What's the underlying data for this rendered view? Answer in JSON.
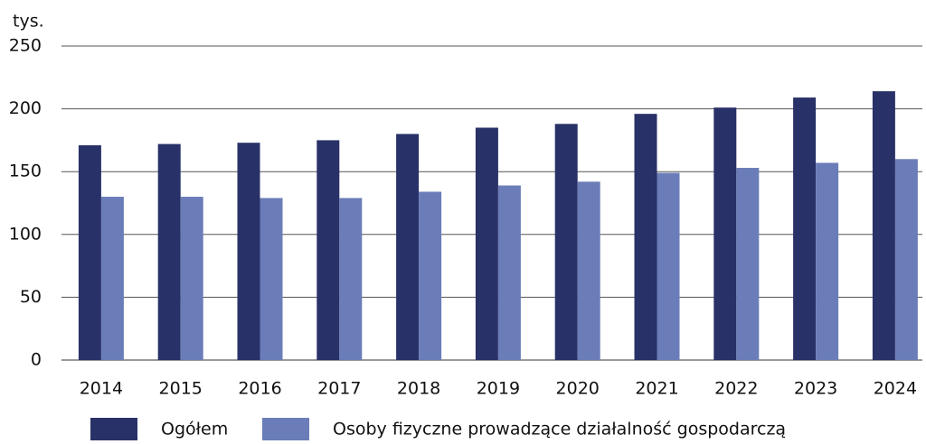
{
  "chart_data": {
    "type": "bar",
    "y_label": "tys.",
    "categories": [
      "2014",
      "2015",
      "2016",
      "2017",
      "2018",
      "2019",
      "2020",
      "2021",
      "2022",
      "2023",
      "2024"
    ],
    "series": [
      {
        "name": "Ogółem",
        "color": "#283168",
        "values": [
          171,
          172,
          173,
          175,
          180,
          185,
          188,
          196,
          201,
          209,
          214
        ]
      },
      {
        "name": "Osoby fizyczne prowadzące działalność gospodarczą",
        "color": "#6b7db8",
        "values": [
          130,
          130,
          129,
          129,
          134,
          139,
          142,
          149,
          153,
          157,
          160
        ]
      }
    ],
    "ylim": [
      0,
      250
    ],
    "yticks": [
      0,
      50,
      100,
      150,
      200,
      250
    ],
    "grid": true,
    "legend": "bottom"
  }
}
